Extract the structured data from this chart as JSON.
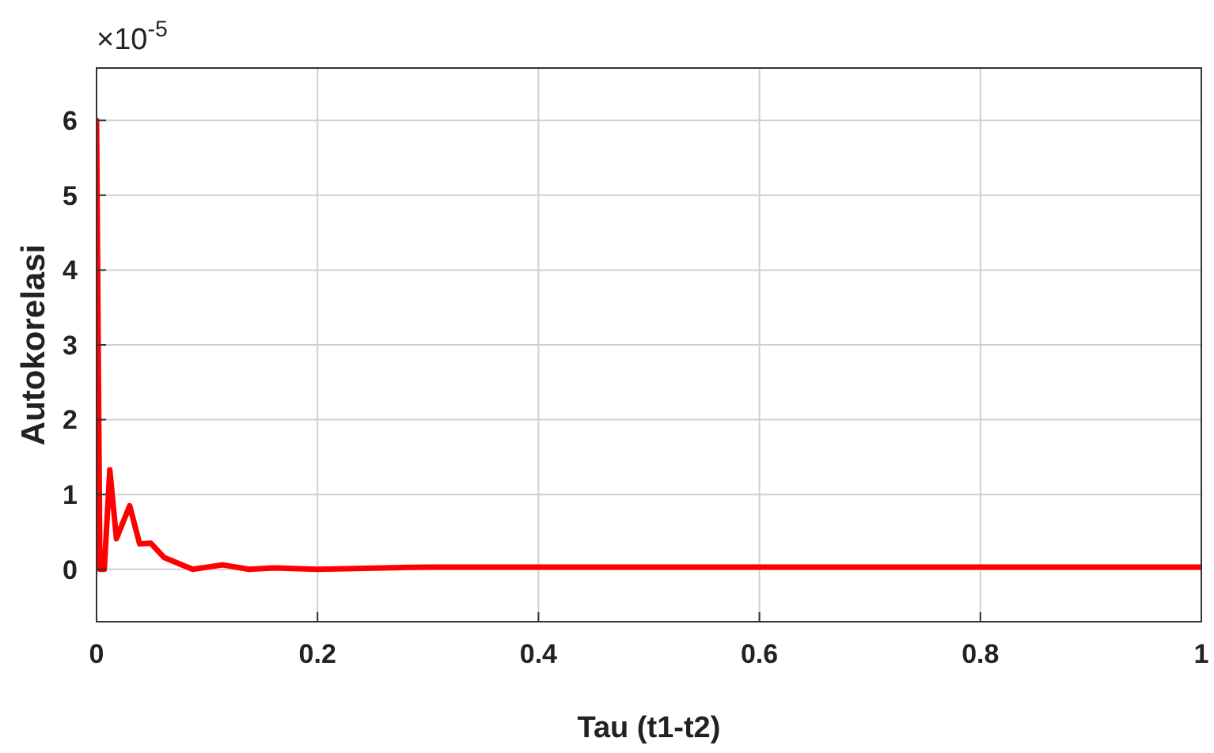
{
  "chart_data": {
    "type": "line",
    "xlabel": "Tau (t1-t2)",
    "ylabel": "Autokorelasi",
    "annotations": [
      "×10$^{-5}$"
    ],
    "xlim": [
      0,
      1
    ],
    "xticks": [
      0,
      0.2,
      0.4,
      0.6,
      0.8,
      1
    ],
    "ylim": [
      -0.7,
      6.7
    ],
    "yticks": [
      0,
      1,
      2,
      3,
      4,
      5,
      6
    ],
    "grid": true,
    "series": [
      {
        "color": "#ff0000",
        "x": [
          0,
          0.003,
          0.007,
          0.012,
          0.018,
          0.03,
          0.039,
          0.049,
          0.061,
          0.087,
          0.114,
          0.138,
          0.161,
          0.2,
          0.3,
          0.4,
          0.5,
          0.6,
          0.7,
          0.8,
          0.9,
          1
        ],
        "values": [
          6,
          0,
          0,
          1.33,
          0.41,
          0.85,
          0.34,
          0.35,
          0.16,
          0,
          0.06,
          0,
          0.02,
          0,
          0.03,
          0.03,
          0.03,
          0.03,
          0.03,
          0.03,
          0.03,
          0.03
        ]
      }
    ]
  }
}
